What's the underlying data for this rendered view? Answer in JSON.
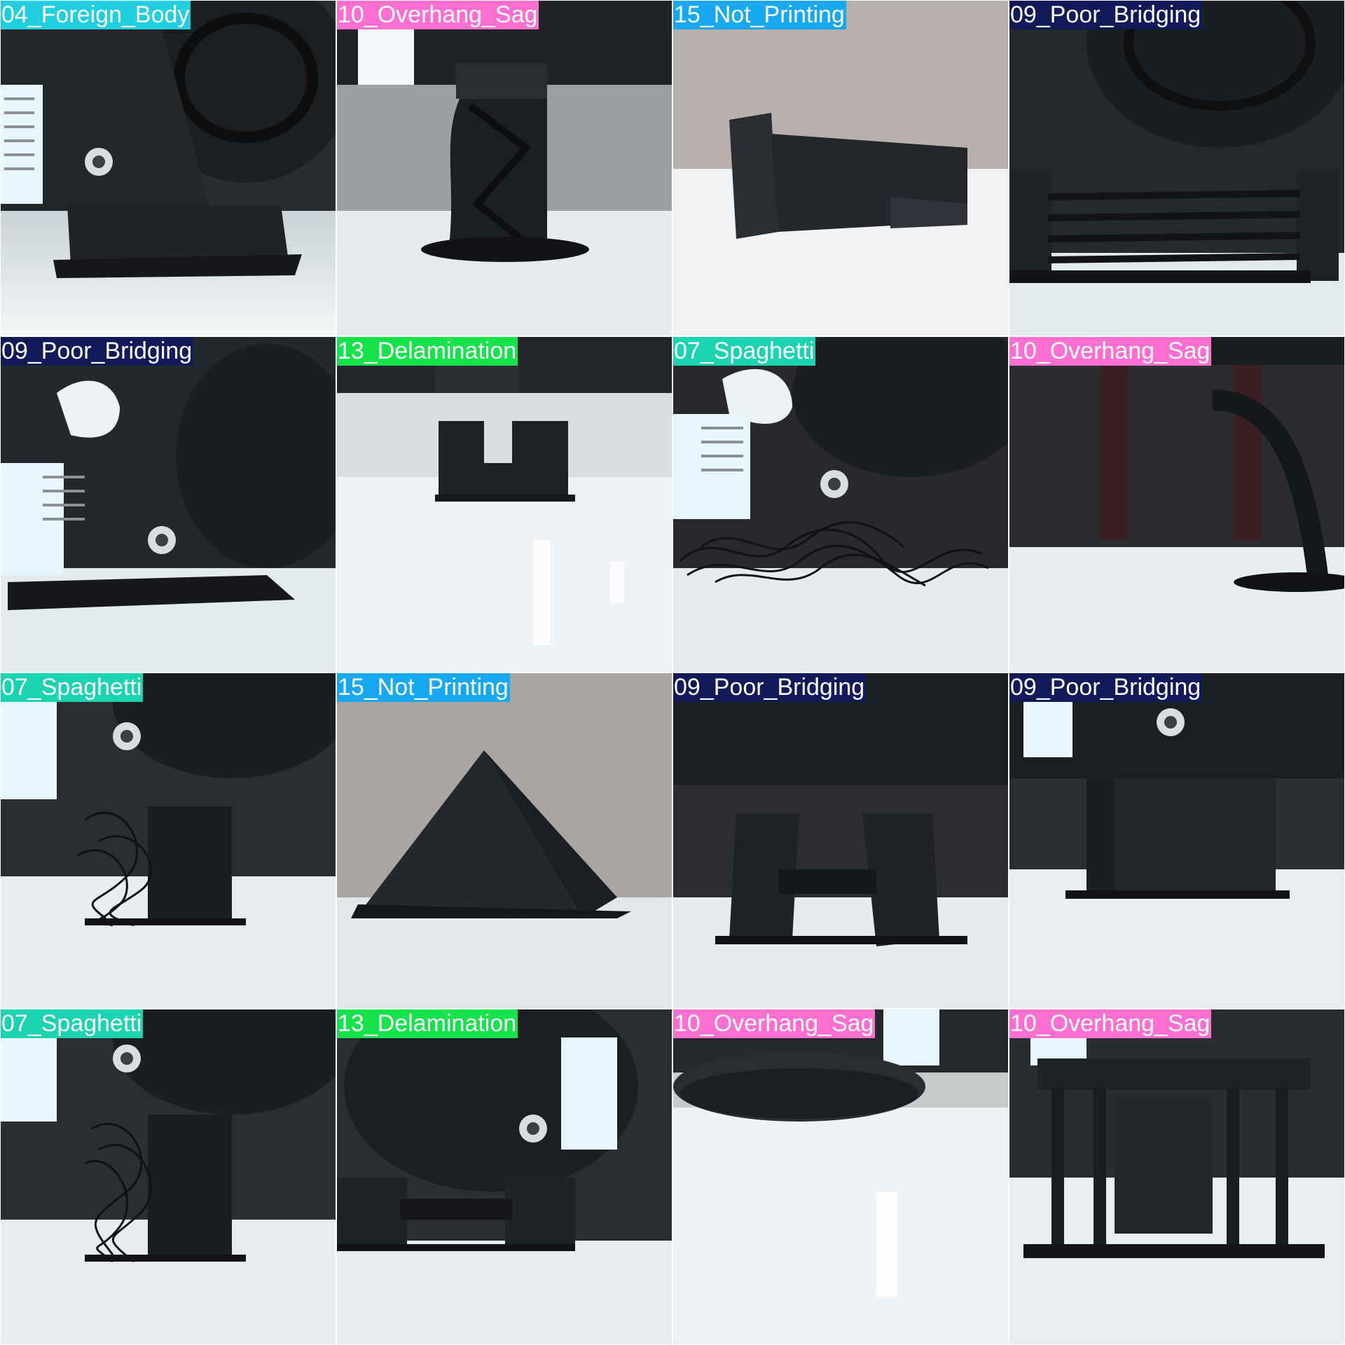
{
  "tiles": [
    {
      "label": "04_Foreign_Body",
      "color": "#1fcfe0"
    },
    {
      "label": "10_Overhang_Sag",
      "color": "#ff6fd2"
    },
    {
      "label": "15_Not_Printing",
      "color": "#16a9f2"
    },
    {
      "label": "09_Poor_Bridging",
      "color": "#121a5a"
    },
    {
      "label": "09_Poor_Bridging",
      "color": "#121a5a"
    },
    {
      "label": "13_Delamination",
      "color": "#14e44a"
    },
    {
      "label": "07_Spaghetti",
      "color": "#1ad3b0"
    },
    {
      "label": "10_Overhang_Sag",
      "color": "#ff6fd2"
    },
    {
      "label": "07_Spaghetti",
      "color": "#1ad3b0"
    },
    {
      "label": "15_Not_Printing",
      "color": "#16a9f2"
    },
    {
      "label": "09_Poor_Bridging",
      "color": "#121a5a"
    },
    {
      "label": "09_Poor_Bridging",
      "color": "#121a5a"
    },
    {
      "label": "07_Spaghetti",
      "color": "#1ad3b0"
    },
    {
      "label": "13_Delamination",
      "color": "#14e44a"
    },
    {
      "label": "10_Overhang_Sag",
      "color": "#ff6fd2"
    },
    {
      "label": "10_Overhang_Sag",
      "color": "#ff6fd2"
    }
  ]
}
